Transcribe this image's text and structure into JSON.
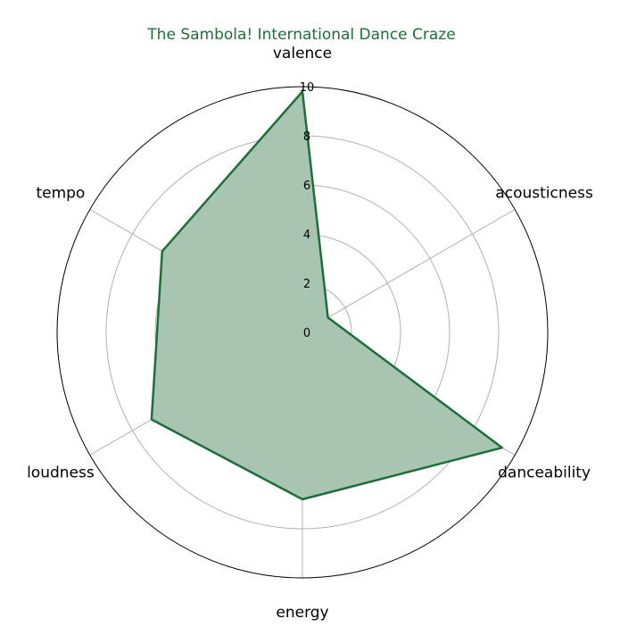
{
  "chart_data": {
    "type": "radar",
    "title": "The Sambola! International Dance Craze",
    "categories": [
      "valence",
      "acousticness",
      "danceability",
      "energy",
      "loudness",
      "tempo"
    ],
    "series": [
      {
        "values": [
          9.8,
          1.2,
          9.4,
          6.8,
          7.1,
          6.6
        ]
      }
    ],
    "rlim": [
      0,
      10
    ],
    "rticks": [
      "0",
      "2",
      "4",
      "6",
      "8",
      "10"
    ],
    "grid": true,
    "colors": {
      "line": "#1e6e3a",
      "fill": "#a8c5b2",
      "grid": "#b0b0b0",
      "frame": "#000000",
      "title": "#1e6e3a"
    }
  }
}
